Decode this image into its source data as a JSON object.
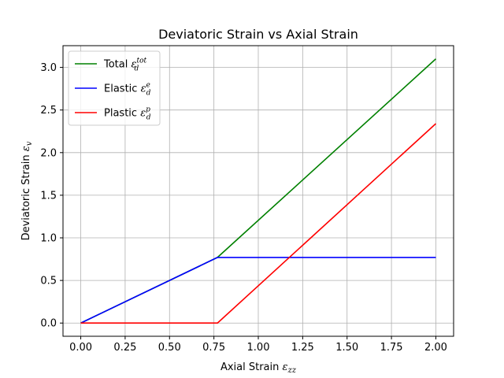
{
  "chart_data": {
    "type": "line",
    "title": "Deviatoric Strain vs Axial Strain",
    "xlabel": {
      "text": "Axial Strain ",
      "symbol": "ε",
      "sub": "zz"
    },
    "ylabel": {
      "text": "Deviatoric Strain ",
      "symbol": "ε",
      "sub": "v"
    },
    "xlim": [
      -0.1,
      2.1
    ],
    "ylim": [
      -0.155,
      3.255
    ],
    "xticks": [
      0.0,
      0.25,
      0.5,
      0.75,
      1.0,
      1.25,
      1.5,
      1.75,
      2.0
    ],
    "xtick_labels": [
      "0.00",
      "0.25",
      "0.50",
      "0.75",
      "1.00",
      "1.25",
      "1.50",
      "1.75",
      "2.00"
    ],
    "yticks": [
      0.0,
      0.5,
      1.0,
      1.5,
      2.0,
      2.5,
      3.0
    ],
    "ytick_labels": [
      "0.0",
      "0.5",
      "1.0",
      "1.5",
      "2.0",
      "2.5",
      "3.0"
    ],
    "grid": true,
    "legend_position": "top-left",
    "series": [
      {
        "name": "Total",
        "symbol": "ε",
        "sub": "d",
        "sup": "tot",
        "color": "#008000",
        "x": [
          0.0,
          0.77,
          2.0
        ],
        "y": [
          0.0,
          0.77,
          3.1
        ]
      },
      {
        "name": "Elastic",
        "symbol": "ε",
        "sub": "d",
        "sup": "e",
        "color": "#0000ff",
        "x": [
          0.0,
          0.77,
          2.0
        ],
        "y": [
          0.0,
          0.77,
          0.77
        ]
      },
      {
        "name": "Plastic",
        "symbol": "ε",
        "sub": "d",
        "sup": "p",
        "color": "#ff0000",
        "x": [
          0.0,
          0.77,
          2.0
        ],
        "y": [
          0.0,
          0.0,
          2.34
        ]
      }
    ]
  }
}
